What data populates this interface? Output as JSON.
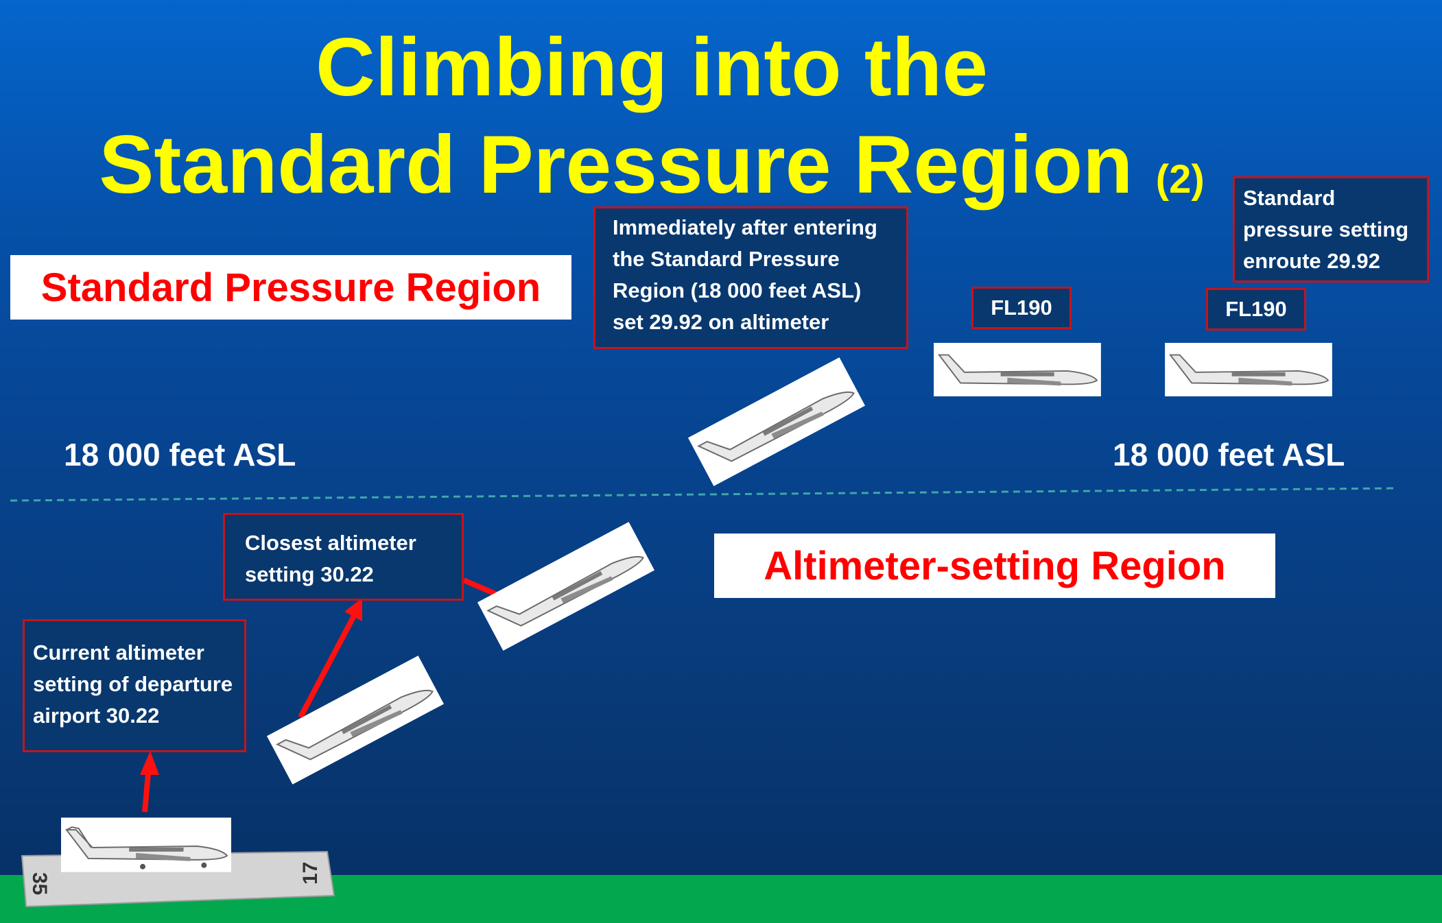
{
  "title": {
    "line1": "Climbing into the",
    "line2": "Standard Pressure Region",
    "number": "(2)"
  },
  "regions": {
    "standard": "Standard Pressure Region",
    "altimeter": "Altimeter-setting Region"
  },
  "altitude_labels": {
    "left": "18 000 feet ASL",
    "right": "18 000 feet ASL"
  },
  "notes": {
    "departure": [
      "Current altimeter",
      "setting of departure",
      "airport 30.22"
    ],
    "closest": [
      "Closest altimeter",
      "setting 30.22"
    ],
    "entering": [
      "Immediately after entering",
      "the Standard Pressure",
      "Region (18 000 feet ASL)",
      "set 29.92 on altimeter"
    ],
    "enroute": [
      "Standard",
      "pressure setting",
      "enroute 29.92"
    ]
  },
  "flight_levels": {
    "fl1": "FL190",
    "fl2": "FL190"
  },
  "runway": {
    "left_number": "35",
    "right_number": "17"
  },
  "colors": {
    "title": "#ffff00",
    "region_text": "#ff0000",
    "note_border": "#c4141c",
    "arrow": "#ff1010",
    "ground": "#03a84e"
  }
}
